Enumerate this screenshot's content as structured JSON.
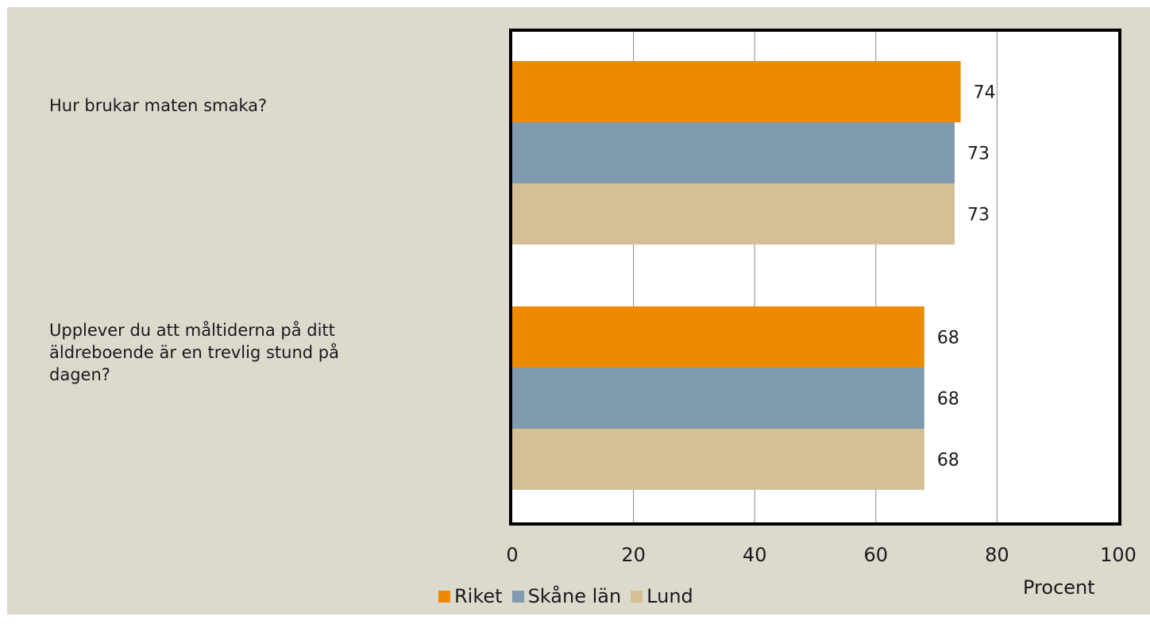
{
  "chart_data": {
    "type": "bar",
    "orientation": "horizontal",
    "categories": [
      "Hur brukar maten smaka?",
      "Upplever du att måltiderna på ditt\näldreboende är en trevlig stund på\ndagen?"
    ],
    "series": [
      {
        "name": "Riket",
        "color": "#ec8b00",
        "values": [
          74,
          68
        ]
      },
      {
        "name": "Skåne län",
        "color": "#7f9bad",
        "values": [
          73,
          68
        ]
      },
      {
        "name": "Lund",
        "color": "#d4bf97",
        "values": [
          73,
          68
        ]
      }
    ],
    "xlim": [
      0,
      100
    ],
    "xticks": [
      "0",
      "20",
      "40",
      "60",
      "80",
      "100"
    ],
    "xlabel": "Procent",
    "grid": "vertical",
    "legend": "bottom"
  }
}
